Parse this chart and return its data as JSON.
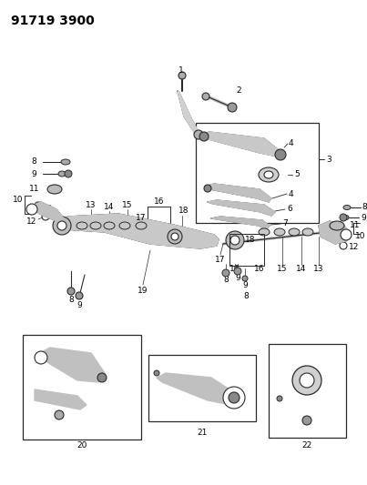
{
  "title": "91719 3900",
  "bg_color": "#ffffff",
  "lc": "#2a2a2a",
  "tc": "#000000",
  "fig_width": 4.03,
  "fig_height": 5.33,
  "dpi": 100,
  "label_fs": 6.5,
  "title_fs": 10
}
